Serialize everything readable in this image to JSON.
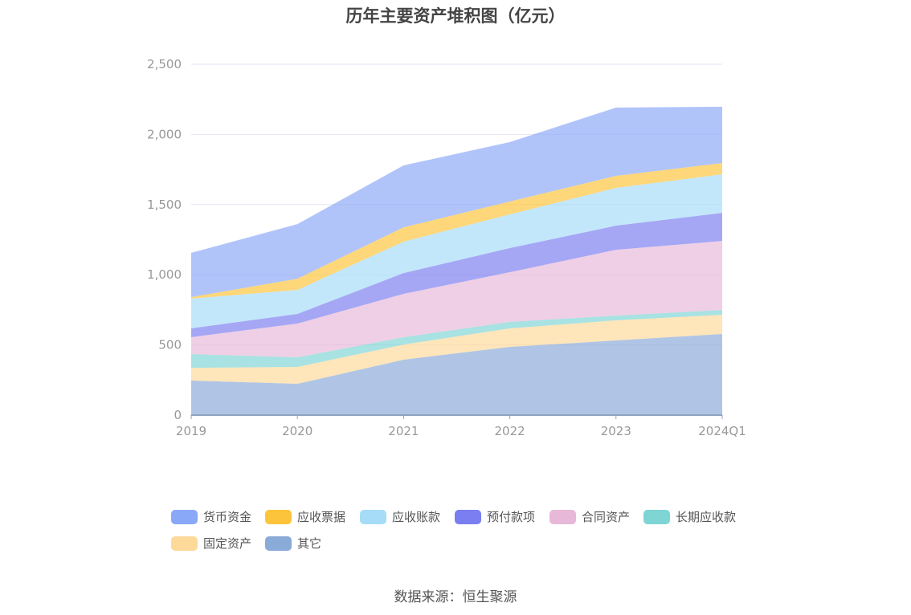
{
  "chart_data": {
    "type": "area",
    "stacked": true,
    "title": "历年主要资产堆积图（亿元）",
    "categories": [
      "2019",
      "2020",
      "2021",
      "2022",
      "2023",
      "2024Q1"
    ],
    "ylim": [
      0,
      2500
    ],
    "yticks": [
      0,
      500,
      1000,
      1500,
      2000,
      2500
    ],
    "ytick_labels": [
      "0",
      "500",
      "1,000",
      "1,500",
      "2,000",
      "2,500"
    ],
    "grid": true,
    "legend_position": "bottom",
    "series": [
      {
        "name": "其它",
        "color": "#8aaad8",
        "values": [
          246,
          223,
          395,
          486,
          532,
          578
        ]
      },
      {
        "name": "固定资产",
        "color": "#fdd99a",
        "values": [
          91,
          120,
          108,
          132,
          143,
          137
        ]
      },
      {
        "name": "长期应收款",
        "color": "#7fd4d4",
        "values": [
          98,
          69,
          52,
          46,
          34,
          34
        ]
      },
      {
        "name": "合同资产",
        "color": "#e8b8d8",
        "values": [
          120,
          240,
          309,
          354,
          469,
          492
        ]
      },
      {
        "name": "预付款项",
        "color": "#7a7ef0",
        "values": [
          63,
          69,
          148,
          172,
          172,
          200
        ]
      },
      {
        "name": "应收账款",
        "color": "#a6dcf8",
        "values": [
          212,
          171,
          224,
          240,
          269,
          275
        ]
      },
      {
        "name": "应收票据",
        "color": "#fcc43a",
        "values": [
          11,
          80,
          102,
          92,
          86,
          80
        ]
      },
      {
        "name": "货币资金",
        "color": "#8aa8f8",
        "values": [
          315,
          389,
          441,
          423,
          486,
          401
        ]
      }
    ],
    "legend_order": [
      "货币资金",
      "应收票据",
      "应收账款",
      "预付款项",
      "合同资产",
      "长期应收款",
      "固定资产",
      "其它"
    ]
  },
  "source": "数据来源：恒生聚源"
}
